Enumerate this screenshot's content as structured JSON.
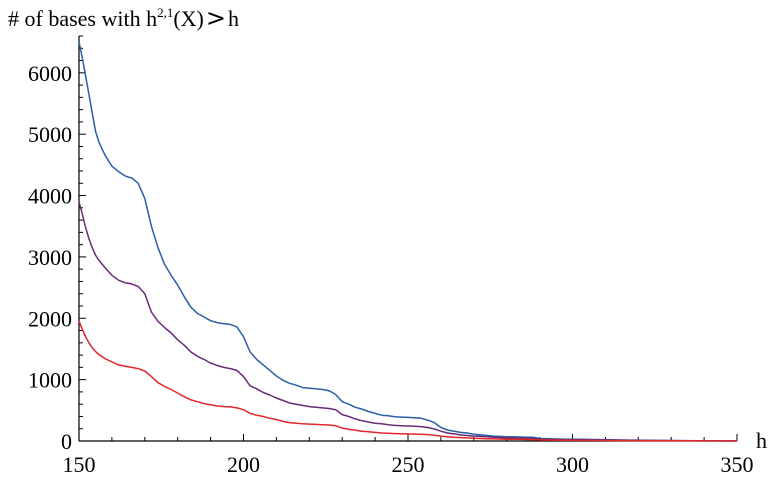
{
  "chart_data": {
    "type": "line",
    "title": "",
    "ylabel_text": "# of bases with h",
    "ylabel_sup": "2,1",
    "ylabel_tail": "(X)",
    "ylabel_gt": ">",
    "ylabel_h": "h",
    "xlabel": "h",
    "xlim": [
      150,
      350
    ],
    "ylim": [
      0,
      6600
    ],
    "xticks": [
      150,
      200,
      250,
      300,
      350
    ],
    "yticks": [
      0,
      1000,
      2000,
      3000,
      4000,
      5000,
      6000
    ],
    "grid": false,
    "legend": "none",
    "series": [
      {
        "color": "#2a5ea8",
        "x": [
          150,
          151,
          152,
          153,
          154,
          155,
          156,
          157,
          158,
          160,
          162,
          164,
          165,
          166,
          168,
          170,
          172,
          174,
          176,
          178,
          180,
          182,
          184,
          186,
          188,
          190,
          192,
          194,
          196,
          198,
          200,
          202,
          204,
          206,
          208,
          210,
          212,
          214,
          216,
          218,
          220,
          222,
          224,
          226,
          228,
          230,
          232,
          234,
          236,
          238,
          240,
          242,
          244,
          246,
          248,
          250,
          252,
          254,
          256,
          258,
          260,
          262,
          264,
          266,
          268,
          270,
          272,
          274,
          276,
          278,
          280,
          282,
          284,
          286,
          288,
          290,
          294,
          298,
          302,
          306,
          310,
          314,
          318,
          322,
          326,
          330,
          334,
          338,
          342,
          346,
          350
        ],
        "y": [
          6500,
          6250,
          5950,
          5650,
          5350,
          5050,
          4880,
          4760,
          4650,
          4480,
          4390,
          4320,
          4300,
          4290,
          4200,
          3950,
          3500,
          3150,
          2880,
          2700,
          2540,
          2350,
          2180,
          2080,
          2020,
          1960,
          1930,
          1910,
          1900,
          1860,
          1700,
          1450,
          1330,
          1240,
          1150,
          1060,
          990,
          940,
          910,
          870,
          860,
          850,
          840,
          820,
          760,
          640,
          600,
          550,
          520,
          480,
          450,
          420,
          410,
          395,
          390,
          385,
          380,
          370,
          340,
          300,
          220,
          180,
          160,
          140,
          130,
          110,
          100,
          90,
          80,
          75,
          70,
          68,
          65,
          62,
          60,
          40,
          35,
          30,
          28,
          25,
          22,
          18,
          15,
          12,
          10,
          8,
          6,
          5,
          4,
          3,
          3
        ]
      },
      {
        "color": "#6a2a7a",
        "x": [
          150,
          151,
          152,
          153,
          154,
          155,
          156,
          158,
          160,
          162,
          164,
          166,
          168,
          170,
          172,
          174,
          176,
          178,
          180,
          182,
          184,
          186,
          188,
          190,
          192,
          194,
          196,
          198,
          200,
          202,
          204,
          206,
          208,
          210,
          212,
          214,
          216,
          218,
          220,
          222,
          224,
          226,
          228,
          230,
          232,
          234,
          236,
          238,
          240,
          242,
          244,
          246,
          248,
          250,
          252,
          254,
          256,
          258,
          260,
          262,
          264,
          266,
          268,
          270,
          272,
          274,
          276,
          278,
          280,
          282,
          284,
          286,
          288,
          290,
          294,
          298,
          302,
          306,
          310,
          314,
          318,
          322,
          326,
          330,
          334,
          338,
          342,
          346,
          350
        ],
        "y": [
          3900,
          3700,
          3480,
          3300,
          3150,
          3030,
          2950,
          2820,
          2700,
          2620,
          2580,
          2560,
          2520,
          2400,
          2100,
          1950,
          1850,
          1760,
          1650,
          1560,
          1450,
          1380,
          1330,
          1270,
          1230,
          1200,
          1180,
          1150,
          1050,
          900,
          850,
          790,
          750,
          700,
          660,
          620,
          600,
          580,
          560,
          550,
          540,
          530,
          510,
          430,
          400,
          360,
          330,
          310,
          290,
          280,
          265,
          255,
          250,
          245,
          240,
          235,
          220,
          195,
          160,
          130,
          115,
          100,
          90,
          80,
          75,
          70,
          60,
          55,
          50,
          48,
          45,
          43,
          40,
          30,
          25,
          22,
          20,
          18,
          15,
          12,
          10,
          8,
          7,
          6,
          5,
          4,
          3,
          2,
          2
        ]
      },
      {
        "color": "#e0282a",
        "x": [
          150,
          151,
          152,
          153,
          154,
          155,
          156,
          158,
          160,
          162,
          164,
          166,
          168,
          170,
          172,
          174,
          176,
          178,
          180,
          182,
          184,
          186,
          188,
          190,
          192,
          194,
          196,
          198,
          200,
          202,
          204,
          206,
          208,
          210,
          212,
          214,
          216,
          218,
          220,
          222,
          224,
          226,
          228,
          230,
          232,
          234,
          236,
          238,
          240,
          242,
          244,
          246,
          248,
          250,
          252,
          254,
          256,
          258,
          260,
          262,
          264,
          266,
          268,
          270,
          272,
          274,
          276,
          278,
          280,
          282,
          284,
          286,
          288,
          290,
          294,
          298,
          302,
          306,
          310,
          314,
          318,
          322,
          326,
          330,
          334,
          338,
          342,
          346,
          350
        ],
        "y": [
          1950,
          1820,
          1700,
          1600,
          1520,
          1460,
          1410,
          1340,
          1290,
          1240,
          1220,
          1200,
          1180,
          1140,
          1050,
          950,
          890,
          840,
          780,
          720,
          670,
          640,
          610,
          590,
          570,
          560,
          555,
          540,
          510,
          450,
          420,
          400,
          370,
          350,
          320,
          300,
          290,
          280,
          275,
          270,
          265,
          260,
          250,
          210,
          190,
          175,
          160,
          150,
          140,
          130,
          125,
          120,
          118,
          115,
          112,
          110,
          105,
          95,
          80,
          70,
          60,
          55,
          50,
          45,
          40,
          38,
          35,
          32,
          30,
          28,
          27,
          25,
          22,
          18,
          15,
          12,
          10,
          9,
          8,
          7,
          6,
          5,
          4,
          3,
          3,
          2,
          2,
          2,
          2
        ]
      }
    ]
  }
}
